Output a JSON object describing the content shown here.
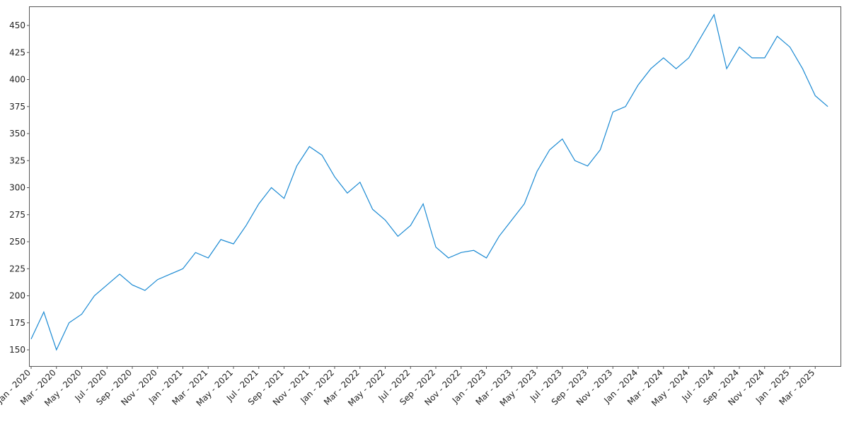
{
  "chart_data": {
    "type": "line",
    "x": [
      "2020-01",
      "2020-02",
      "2020-03",
      "2020-04",
      "2020-05",
      "2020-06",
      "2020-07",
      "2020-08",
      "2020-09",
      "2020-10",
      "2020-11",
      "2020-12",
      "2021-01",
      "2021-02",
      "2021-03",
      "2021-04",
      "2021-05",
      "2021-06",
      "2021-07",
      "2021-08",
      "2021-09",
      "2021-10",
      "2021-11",
      "2021-12",
      "2022-01",
      "2022-02",
      "2022-03",
      "2022-04",
      "2022-05",
      "2022-06",
      "2022-07",
      "2022-08",
      "2022-09",
      "2022-10",
      "2022-11",
      "2022-12",
      "2023-01",
      "2023-02",
      "2023-03",
      "2023-04",
      "2023-05",
      "2023-06",
      "2023-07",
      "2023-08",
      "2023-09",
      "2023-10",
      "2023-11",
      "2023-12",
      "2024-01",
      "2024-02",
      "2024-03",
      "2024-04",
      "2024-05",
      "2024-06",
      "2024-07",
      "2024-08",
      "2024-09",
      "2024-10",
      "2024-11",
      "2024-12",
      "2025-01",
      "2025-02",
      "2025-03",
      "2025-04"
    ],
    "series": [
      {
        "color": "#1b8ad3",
        "values": [
          160,
          185,
          150,
          175,
          183,
          200,
          210,
          220,
          210,
          205,
          215,
          220,
          225,
          240,
          235,
          252,
          248,
          265,
          285,
          300,
          290,
          320,
          338,
          330,
          310,
          295,
          305,
          280,
          270,
          255,
          265,
          285,
          245,
          235,
          240,
          242,
          235,
          255,
          270,
          285,
          315,
          335,
          345,
          325,
          320,
          335,
          370,
          375,
          395,
          410,
          420,
          410,
          420,
          440,
          460,
          410,
          430,
          420,
          420,
          440,
          430,
          410,
          385,
          375
        ]
      }
    ],
    "xlim": [
      "2020-01",
      "2025-05"
    ],
    "ylim": [
      135,
      467
    ],
    "yticks": [
      150,
      175,
      200,
      225,
      250,
      275,
      300,
      325,
      350,
      375,
      400,
      425,
      450
    ],
    "xticks": [
      {
        "value": "2020-01",
        "label": "Jan - 2020"
      },
      {
        "value": "2020-03",
        "label": "Mar - 2020"
      },
      {
        "value": "2020-05",
        "label": "May - 2020"
      },
      {
        "value": "2020-07",
        "label": "Jul - 2020"
      },
      {
        "value": "2020-09",
        "label": "Sep - 2020"
      },
      {
        "value": "2020-11",
        "label": "Nov - 2020"
      },
      {
        "value": "2021-01",
        "label": "Jan - 2021"
      },
      {
        "value": "2021-03",
        "label": "Mar - 2021"
      },
      {
        "value": "2021-05",
        "label": "May - 2021"
      },
      {
        "value": "2021-07",
        "label": "Jul - 2021"
      },
      {
        "value": "2021-09",
        "label": "Sep - 2021"
      },
      {
        "value": "2021-11",
        "label": "Nov - 2021"
      },
      {
        "value": "2022-01",
        "label": "Jan - 2022"
      },
      {
        "value": "2022-03",
        "label": "Mar - 2022"
      },
      {
        "value": "2022-05",
        "label": "May - 2022"
      },
      {
        "value": "2022-07",
        "label": "Jul - 2022"
      },
      {
        "value": "2022-09",
        "label": "Sep - 2022"
      },
      {
        "value": "2022-11",
        "label": "Nov - 2022"
      },
      {
        "value": "2023-01",
        "label": "Jan - 2023"
      },
      {
        "value": "2023-03",
        "label": "Mar - 2023"
      },
      {
        "value": "2023-05",
        "label": "May - 2023"
      },
      {
        "value": "2023-07",
        "label": "Jul - 2023"
      },
      {
        "value": "2023-09",
        "label": "Sep - 2023"
      },
      {
        "value": "2023-11",
        "label": "Nov - 2023"
      },
      {
        "value": "2024-01",
        "label": "Jan - 2024"
      },
      {
        "value": "2024-03",
        "label": "Mar - 2024"
      },
      {
        "value": "2024-05",
        "label": "May - 2024"
      },
      {
        "value": "2024-07",
        "label": "Jul - 2024"
      },
      {
        "value": "2024-09",
        "label": "Sep - 2024"
      },
      {
        "value": "2024-11",
        "label": "Nov - 2024"
      },
      {
        "value": "2025-01",
        "label": "Jan - 2025"
      },
      {
        "value": "2025-03",
        "label": "Mar - 2025"
      }
    ]
  }
}
